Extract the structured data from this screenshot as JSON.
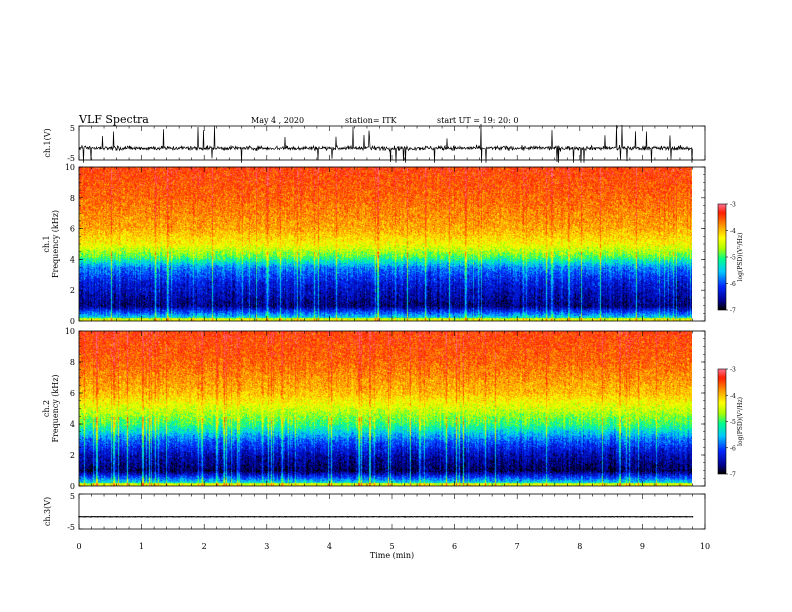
{
  "header": {
    "title": "VLF Spectra",
    "date": "May 4 , 2020",
    "station": "station= ITK",
    "start_ut": "start UT =  19: 20: 0"
  },
  "colors": {
    "spectrogram_scale": [
      "#000000",
      "#000090",
      "#0030ff",
      "#00c0ff",
      "#00ff90",
      "#b0ff00",
      "#ffff00",
      "#ffa000",
      "#ff2000",
      "#ff6080"
    ],
    "trace": "#000000"
  },
  "chart_data": [
    {
      "id": "ch1-waveform",
      "type": "line",
      "ylabel": "ch.1(V)",
      "ylim": [
        -5,
        5
      ],
      "yticks": [
        "5",
        "-5"
      ],
      "xlim": [
        0,
        10
      ],
      "x_extent_min": [
        0,
        9.8
      ],
      "baseline": -1.5,
      "envelope": [
        -3.5,
        0.5
      ],
      "note_values": "noise-like trace with frequent spikes"
    },
    {
      "id": "ch1-spectrogram",
      "type": "heatmap",
      "ylabel": "ch.1\nFrequency (kHz)",
      "ylabel_lines": [
        "ch.1",
        "Frequency (kHz)"
      ],
      "ylim": [
        0,
        10
      ],
      "yticks": [
        "0",
        "2",
        "4",
        "6",
        "8",
        "10"
      ],
      "xlim": [
        0,
        10
      ],
      "x_extent_min": [
        0,
        9.8
      ],
      "colorbar": {
        "label": "log(PSD)(V²/Hz)",
        "ticks": [
          "-3",
          "-4",
          "-5",
          "-6",
          "-7"
        ],
        "range": [
          -7,
          -3
        ]
      },
      "band_profile_khz": [
        {
          "f": 0.0,
          "log_psd": -5.0
        },
        {
          "f": 0.3,
          "log_psd": -5.5
        },
        {
          "f": 1.0,
          "log_psd": -6.7
        },
        {
          "f": 2.5,
          "log_psd": -6.3
        },
        {
          "f": 3.5,
          "log_psd": -5.8
        },
        {
          "f": 4.2,
          "log_psd": -4.9
        },
        {
          "f": 5.0,
          "log_psd": -4.3
        },
        {
          "f": 6.0,
          "log_psd": -3.9
        },
        {
          "f": 8.0,
          "log_psd": -3.6
        },
        {
          "f": 10.0,
          "log_psd": -3.4
        }
      ]
    },
    {
      "id": "ch2-spectrogram",
      "type": "heatmap",
      "ylabel": "ch.2\nFrequency (kHz)",
      "ylabel_lines": [
        "ch.2",
        "Frequency (kHz)"
      ],
      "ylim": [
        0,
        10
      ],
      "yticks": [
        "0",
        "2",
        "4",
        "6",
        "8",
        "10"
      ],
      "xlim": [
        0,
        10
      ],
      "x_extent_min": [
        0,
        9.8
      ],
      "colorbar": {
        "label": "log(PSD)(V²/Hz)",
        "ticks": [
          "-3",
          "-4",
          "-5",
          "-6",
          "-7"
        ],
        "range": [
          -7,
          -3
        ]
      },
      "band_profile_khz": [
        {
          "f": 0.0,
          "log_psd": -5.0
        },
        {
          "f": 0.3,
          "log_psd": -5.5
        },
        {
          "f": 1.0,
          "log_psd": -6.8
        },
        {
          "f": 2.0,
          "log_psd": -6.5
        },
        {
          "f": 3.0,
          "log_psd": -5.9
        },
        {
          "f": 4.0,
          "log_psd": -5.0
        },
        {
          "f": 5.0,
          "log_psd": -4.5
        },
        {
          "f": 6.0,
          "log_psd": -4.0
        },
        {
          "f": 8.0,
          "log_psd": -3.6
        },
        {
          "f": 10.0,
          "log_psd": -3.4
        }
      ]
    },
    {
      "id": "ch3-waveform",
      "type": "line",
      "ylabel": "ch.3(V)",
      "ylim": [
        -5,
        5
      ],
      "yticks": [
        "5",
        "-5"
      ],
      "xlim": [
        0,
        10
      ],
      "x_extent_min": [
        0,
        9.8
      ],
      "baseline": -1.5,
      "xlabel": "Time (min)",
      "xticks": [
        "0",
        "1",
        "2",
        "3",
        "4",
        "5",
        "6",
        "7",
        "8",
        "9",
        "10"
      ]
    }
  ]
}
